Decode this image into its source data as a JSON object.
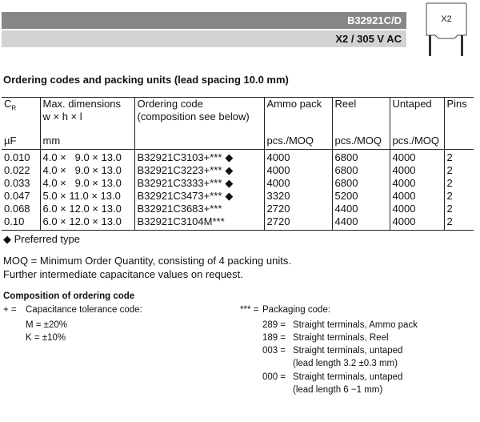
{
  "header": {
    "part_number": "B32921C/D",
    "rating": "X2 / 305 V AC",
    "icon_label": "X2"
  },
  "section_title": "Ordering codes and packing units (lead spacing 10.0 mm)",
  "table": {
    "columns": [
      {
        "label": "C",
        "sub": "R",
        "label2": "",
        "unit": "µF"
      },
      {
        "label": "Max. dimensions",
        "label2": "w × h × l",
        "unit": "mm"
      },
      {
        "label": "Ordering code",
        "label2": "(composition see below)",
        "unit": ""
      },
      {
        "label": "Ammo pack",
        "label2": "",
        "unit": "pcs./MOQ"
      },
      {
        "label": "Reel",
        "label2": "",
        "unit": "pcs./MOQ"
      },
      {
        "label": "Untaped",
        "label2": "",
        "unit": "pcs./MOQ"
      },
      {
        "label": "Pins",
        "label2": "",
        "unit": ""
      }
    ],
    "rows": [
      {
        "cr": "0.010",
        "dims": "4.0 ×   9.0 × 13.0",
        "code": "B32921C3103+***",
        "preferred": "◆",
        "ammo": "4000",
        "reel": "6800",
        "untaped": "4000",
        "pins": "2"
      },
      {
        "cr": "0.022",
        "dims": "4.0 ×   9.0 × 13.0",
        "code": "B32921C3223+***",
        "preferred": "◆",
        "ammo": "4000",
        "reel": "6800",
        "untaped": "4000",
        "pins": "2"
      },
      {
        "cr": "0.033",
        "dims": "4.0 ×   9.0 × 13.0",
        "code": "B32921C3333+***",
        "preferred": "◆",
        "ammo": "4000",
        "reel": "6800",
        "untaped": "4000",
        "pins": "2"
      },
      {
        "cr": "0.047",
        "dims": "5.0 × 11.0 × 13.0",
        "code": "B32921C3473+***",
        "preferred": "◆",
        "ammo": "3320",
        "reel": "5200",
        "untaped": "4000",
        "pins": "2"
      },
      {
        "cr": "0.068",
        "dims": "6.0 × 12.0 × 13.0",
        "code": "B32921C3683+***",
        "preferred": "",
        "ammo": "2720",
        "reel": "4400",
        "untaped": "4000",
        "pins": "2"
      },
      {
        "cr": "0.10",
        "dims": "6.0 × 12.0 × 13.0",
        "code": "B32921C3104M***",
        "preferred": "",
        "ammo": "2720",
        "reel": "4400",
        "untaped": "4000",
        "pins": "2"
      }
    ]
  },
  "notes": {
    "preferred": "◆ Preferred type",
    "moq": "MOQ = Minimum Order Quantity, consisting of 4 packing units.",
    "further": "Further intermediate capacitance values on request."
  },
  "composition": {
    "title": "Composition of ordering code",
    "tolerance": {
      "symbol": "+ =",
      "label": "Capacitance tolerance code:",
      "items": [
        "M = ±20%",
        "K = ±10%"
      ]
    },
    "packaging": {
      "symbol": "*** =",
      "label": "Packaging code:",
      "items": [
        {
          "code": "289 =",
          "desc": "Straight terminals, Ammo pack",
          "desc2": ""
        },
        {
          "code": "189 =",
          "desc": "Straight terminals, Reel",
          "desc2": ""
        },
        {
          "code": "003 =",
          "desc": "Straight terminals, untaped",
          "desc2": "(lead length 3.2 ±0.3 mm)"
        },
        {
          "code": "000 =",
          "desc": "Straight terminals, untaped",
          "desc2": "(lead length 6 −1 mm)"
        }
      ]
    }
  }
}
